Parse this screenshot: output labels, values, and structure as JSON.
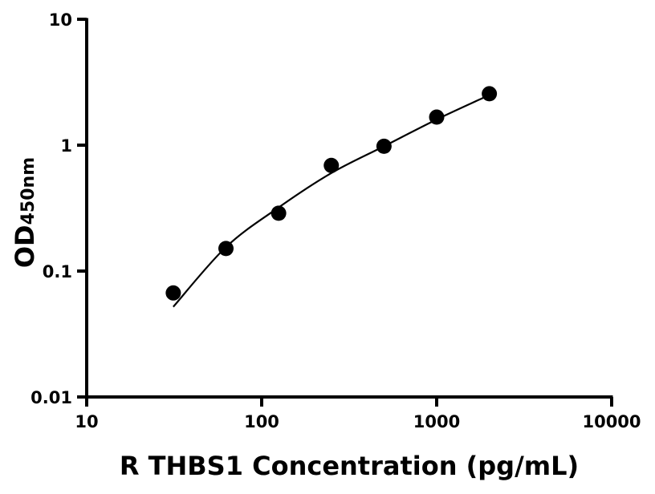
{
  "chart_data": {
    "type": "scatter",
    "title": "",
    "xlabel": "R THBS1 Concentration (pg/mL)",
    "ylabel": "OD",
    "ylabel_sub": "450nm",
    "x_scale": "log",
    "y_scale": "log",
    "xlim": [
      10,
      10000
    ],
    "ylim": [
      0.01,
      10
    ],
    "x_ticks": [
      "10",
      "100",
      "1000",
      "10000"
    ],
    "x_tick_values": [
      10,
      100,
      1000,
      10000
    ],
    "y_ticks": [
      "0.01",
      "0.1",
      "1",
      "10"
    ],
    "y_tick_values": [
      0.01,
      0.1,
      1,
      10
    ],
    "grid": false,
    "points": {
      "x": [
        31.25,
        62.5,
        125,
        250,
        500,
        1000,
        2000
      ],
      "y": [
        0.067,
        0.151,
        0.288,
        0.69,
        0.98,
        1.67,
        2.56
      ]
    },
    "fit_curve": {
      "x": [
        31.25,
        62.5,
        125,
        250,
        500,
        1000,
        2000
      ],
      "y": [
        0.052,
        0.155,
        0.32,
        0.6,
        0.98,
        1.6,
        2.5
      ]
    },
    "colors": {
      "points": "#000000",
      "line": "#000000"
    }
  }
}
